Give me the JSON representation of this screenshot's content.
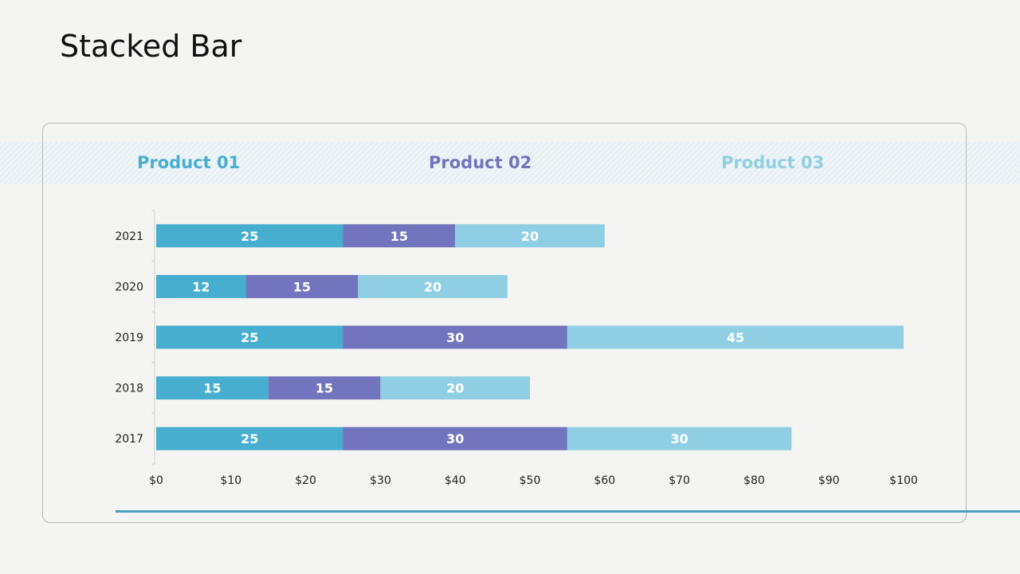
{
  "slide": {
    "title": "Stacked Bar"
  },
  "colors": {
    "product01": "#48aecf",
    "product02": "#7274bd",
    "product03": "#90cfe3",
    "frame": "#b8b8b8",
    "accent_line": "#4a9fb9"
  },
  "chart_data": {
    "type": "bar",
    "orientation": "horizontal",
    "stacked": true,
    "title": "Stacked Bar",
    "categories": [
      "2021",
      "2020",
      "2019",
      "2018",
      "2017"
    ],
    "series": [
      {
        "name": "Product 01",
        "values": [
          25,
          12,
          25,
          15,
          25
        ],
        "color": "#48aecf"
      },
      {
        "name": "Product 02",
        "values": [
          15,
          15,
          30,
          15,
          30
        ],
        "color": "#7274bd"
      },
      {
        "name": "Product 03",
        "values": [
          20,
          20,
          45,
          20,
          30
        ],
        "color": "#90cfe3"
      }
    ],
    "xlim": [
      0,
      100
    ],
    "xticks": [
      0,
      10,
      20,
      30,
      40,
      50,
      60,
      70,
      80,
      90,
      100
    ],
    "xtick_labels": [
      "$0",
      "$10",
      "$20",
      "$30",
      "$40",
      "$50",
      "$60",
      "$70",
      "$80",
      "$90",
      "$100"
    ],
    "legend_position": "top",
    "grid": false
  }
}
